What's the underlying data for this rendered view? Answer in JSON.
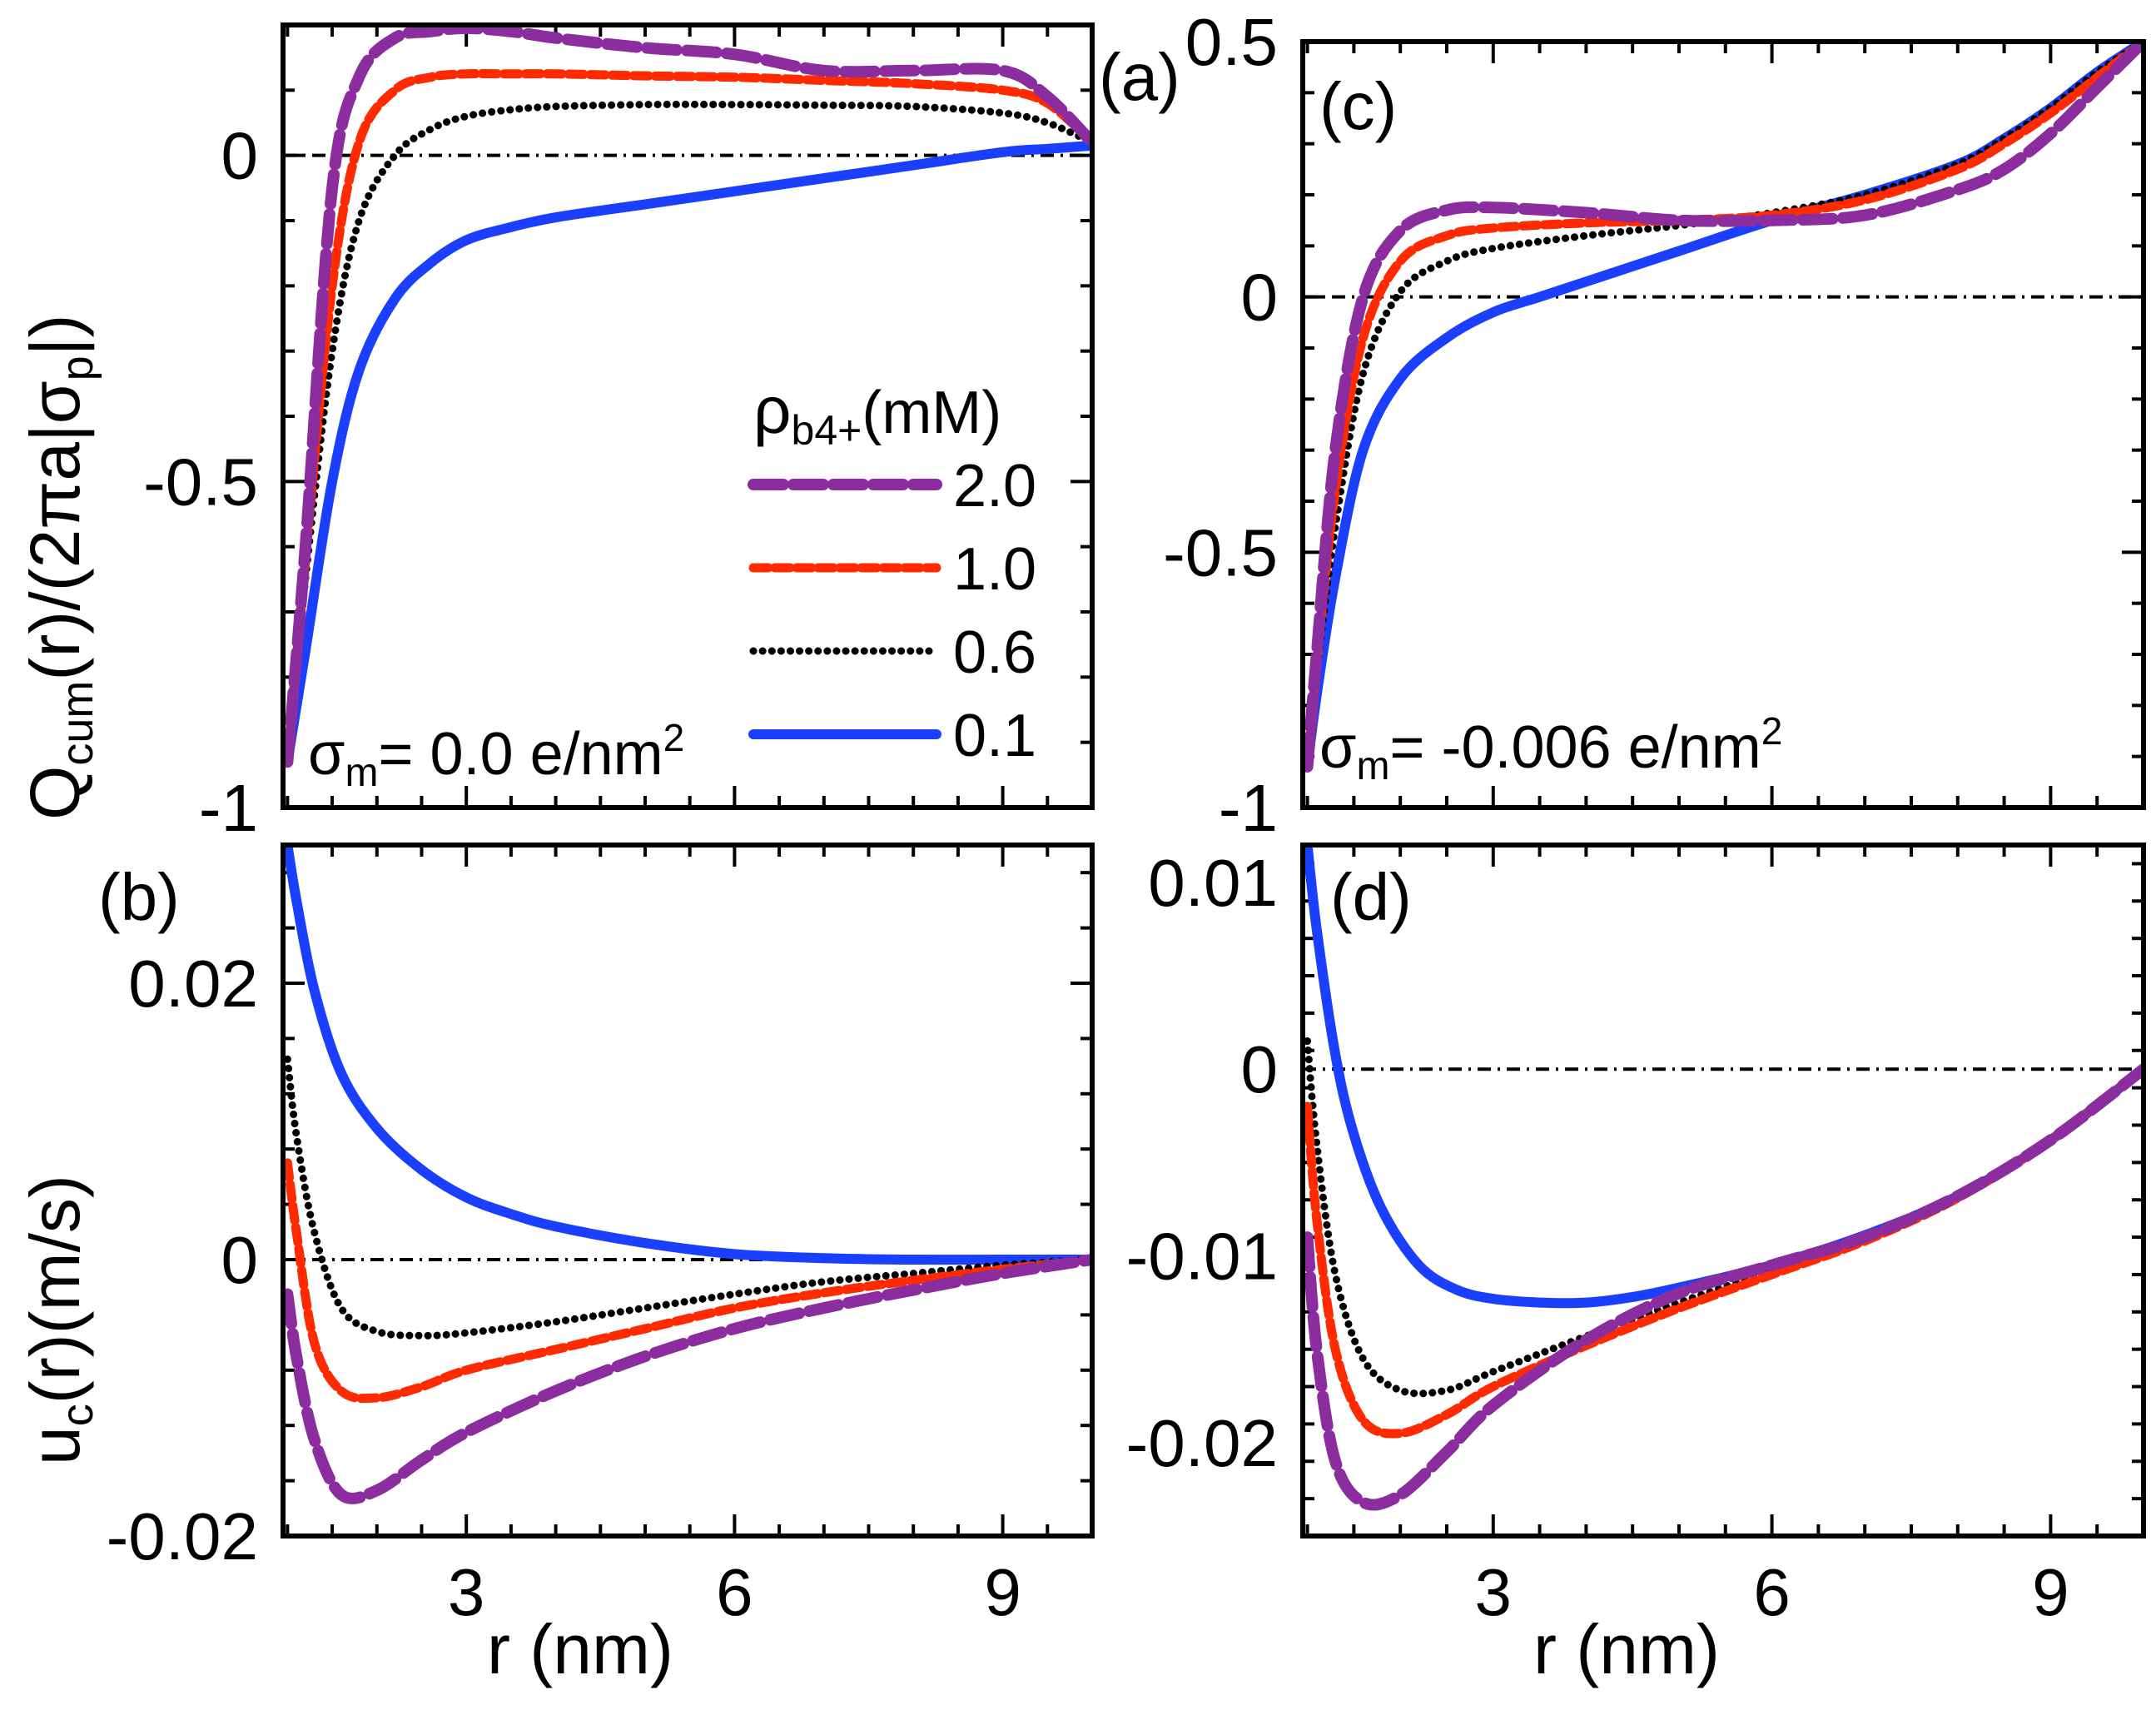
{
  "chart_data": [
    {
      "panel": "(a)",
      "type": "line",
      "ylabel": "Q_cum(r)/(2πa|σ_p|)",
      "xlabel": "",
      "xlim": [
        0.95,
        10.0
      ],
      "ylim": [
        -1.0,
        0.2
      ],
      "xticks": [
        3,
        6,
        9
      ],
      "xtick_labels": [
        "",
        "",
        ""
      ],
      "yticks": [
        -1.0,
        -0.5,
        0.0
      ],
      "ytick_labels": [
        "-1",
        "-0.5",
        "0"
      ],
      "annotation": "σm= 0.0 e/nm²",
      "reference_line_y": 0,
      "series": [
        {
          "name": "2.0",
          "x": [
            1.0,
            1.2,
            1.5,
            1.8,
            2.2,
            2.6,
            3.0,
            3.5,
            4.0,
            5.0,
            6.0,
            7.0,
            8.0,
            9.0,
            9.5,
            10.0
          ],
          "y": [
            -0.93,
            -0.6,
            -0.05,
            0.12,
            0.18,
            0.19,
            0.195,
            0.19,
            0.18,
            0.165,
            0.155,
            0.13,
            0.13,
            0.13,
            0.09,
            0.02
          ]
        },
        {
          "name": "1.0",
          "x": [
            1.0,
            1.2,
            1.5,
            1.8,
            2.2,
            2.6,
            3.0,
            3.5,
            4.0,
            5.0,
            6.0,
            7.0,
            8.0,
            9.0,
            9.5,
            10.0
          ],
          "y": [
            -0.93,
            -0.62,
            -0.2,
            0.02,
            0.1,
            0.12,
            0.125,
            0.125,
            0.125,
            0.122,
            0.12,
            0.115,
            0.11,
            0.1,
            0.08,
            0.02
          ]
        },
        {
          "name": "0.6",
          "x": [
            1.0,
            1.2,
            1.5,
            1.8,
            2.2,
            2.6,
            3.0,
            3.5,
            4.0,
            5.0,
            6.0,
            7.0,
            8.0,
            9.0,
            9.5,
            10.0
          ],
          "y": [
            -0.93,
            -0.65,
            -0.3,
            -0.1,
            0.0,
            0.04,
            0.06,
            0.07,
            0.075,
            0.078,
            0.078,
            0.077,
            0.075,
            0.065,
            0.05,
            0.02
          ]
        },
        {
          "name": "0.1",
          "x": [
            1.0,
            1.2,
            1.5,
            1.8,
            2.2,
            2.6,
            3.0,
            3.5,
            4.0,
            5.0,
            6.0,
            7.0,
            8.0,
            9.0,
            9.5,
            10.0
          ],
          "y": [
            -0.93,
            -0.76,
            -0.5,
            -0.33,
            -0.22,
            -0.165,
            -0.13,
            -0.11,
            -0.095,
            -0.075,
            -0.055,
            -0.035,
            -0.015,
            0.005,
            0.01,
            0.015
          ]
        }
      ]
    },
    {
      "panel": "(b)",
      "type": "line",
      "ylabel": "u_c(r)(m/s)",
      "xlabel": "r (nm)",
      "xlim": [
        0.95,
        10.0
      ],
      "ylim": [
        -0.02,
        0.03
      ],
      "xticks": [
        3,
        6,
        9
      ],
      "xtick_labels": [
        "3",
        "6",
        "9"
      ],
      "yticks": [
        -0.02,
        0.0,
        0.02
      ],
      "ytick_labels": [
        "-0.02",
        "0",
        "0.02"
      ],
      "reference_line_y": 0,
      "series": [
        {
          "name": "2.0",
          "x": [
            1.0,
            1.1,
            1.3,
            1.6,
            2.0,
            2.5,
            3.0,
            4.0,
            5.0,
            6.0,
            7.0,
            8.0,
            9.0,
            10.0
          ],
          "y": [
            -0.0025,
            -0.007,
            -0.013,
            -0.017,
            -0.0167,
            -0.0145,
            -0.0125,
            -0.0095,
            -0.007,
            -0.005,
            -0.0035,
            -0.0022,
            -0.001,
            0.0
          ]
        },
        {
          "name": "1.0",
          "x": [
            1.0,
            1.1,
            1.3,
            1.6,
            2.0,
            2.5,
            3.0,
            4.0,
            5.0,
            6.0,
            7.0,
            8.0,
            9.0,
            10.0
          ],
          "y": [
            0.007,
            0.002,
            -0.006,
            -0.0095,
            -0.01,
            -0.0092,
            -0.008,
            -0.0065,
            -0.005,
            -0.0035,
            -0.0024,
            -0.0015,
            -0.0007,
            0.0
          ]
        },
        {
          "name": "0.6",
          "x": [
            1.0,
            1.1,
            1.3,
            1.6,
            2.0,
            2.5,
            3.0,
            4.0,
            5.0,
            6.0,
            7.0,
            8.0,
            9.0,
            10.0
          ],
          "y": [
            0.0145,
            0.009,
            0.002,
            -0.0035,
            -0.0052,
            -0.0055,
            -0.0053,
            -0.0045,
            -0.0035,
            -0.0025,
            -0.0016,
            -0.001,
            -0.0004,
            0.0
          ]
        },
        {
          "name": "0.1",
          "x": [
            1.0,
            1.1,
            1.3,
            1.6,
            2.0,
            2.5,
            3.0,
            3.5,
            4.0,
            5.0,
            6.0,
            7.0,
            8.0,
            9.0,
            10.0
          ],
          "y": [
            0.03,
            0.026,
            0.0195,
            0.0135,
            0.0095,
            0.0065,
            0.0045,
            0.0033,
            0.0024,
            0.0012,
            0.0004,
            0.0001,
            0.0,
            0.0,
            0.0
          ]
        }
      ]
    },
    {
      "panel": "(c)",
      "type": "line",
      "ylabel": "",
      "xlabel": "",
      "xlim": [
        0.95,
        10.0
      ],
      "ylim": [
        -1.0,
        0.5
      ],
      "xticks": [
        3,
        6,
        9
      ],
      "xtick_labels": [
        "",
        "",
        ""
      ],
      "yticks": [
        -1.0,
        -0.5,
        0.0,
        0.5
      ],
      "ytick_labels": [
        "-1",
        "-0.5",
        "0",
        "0.5"
      ],
      "annotation": "σm= -0.006 e/nm²",
      "reference_line_y": 0,
      "series": [
        {
          "name": "2.0",
          "x": [
            1.0,
            1.1,
            1.3,
            1.6,
            2.0,
            2.5,
            3.0,
            4.0,
            5.0,
            6.0,
            7.0,
            8.0,
            8.5,
            9.0,
            9.5,
            10.0
          ],
          "y": [
            -0.92,
            -0.7,
            -0.3,
            0.0,
            0.13,
            0.17,
            0.175,
            0.165,
            0.15,
            0.15,
            0.16,
            0.21,
            0.25,
            0.32,
            0.41,
            0.5
          ]
        },
        {
          "name": "1.0",
          "x": [
            1.0,
            1.1,
            1.3,
            1.6,
            2.0,
            2.5,
            3.0,
            4.0,
            5.0,
            6.0,
            7.0,
            8.0,
            8.5,
            9.0,
            9.5,
            10.0
          ],
          "y": [
            -0.92,
            -0.72,
            -0.38,
            -0.08,
            0.07,
            0.12,
            0.135,
            0.145,
            0.15,
            0.16,
            0.19,
            0.25,
            0.3,
            0.36,
            0.43,
            0.5
          ]
        },
        {
          "name": "0.6",
          "x": [
            1.0,
            1.1,
            1.3,
            1.6,
            2.0,
            2.5,
            3.0,
            4.0,
            5.0,
            6.0,
            7.0,
            8.0,
            8.5,
            9.0,
            9.5,
            10.0
          ],
          "y": [
            -0.92,
            -0.74,
            -0.45,
            -0.15,
            0.01,
            0.07,
            0.095,
            0.12,
            0.14,
            0.165,
            0.2,
            0.26,
            0.31,
            0.37,
            0.44,
            0.5
          ]
        },
        {
          "name": "0.1",
          "x": [
            1.0,
            1.1,
            1.3,
            1.6,
            2.0,
            2.5,
            3.0,
            3.5,
            4.0,
            5.0,
            6.0,
            7.0,
            8.0,
            8.5,
            9.0,
            9.5,
            10.0
          ],
          "y": [
            -0.92,
            -0.78,
            -0.55,
            -0.3,
            -0.16,
            -0.08,
            -0.03,
            0.0,
            0.03,
            0.09,
            0.15,
            0.2,
            0.26,
            0.31,
            0.37,
            0.44,
            0.5
          ]
        }
      ]
    },
    {
      "panel": "(d)",
      "type": "line",
      "ylabel": "",
      "xlabel": "r (nm)",
      "xlim": [
        0.95,
        10.0
      ],
      "ylim": [
        -0.025,
        0.012
      ],
      "xticks": [
        3,
        6,
        9
      ],
      "xtick_labels": [
        "3",
        "6",
        "9"
      ],
      "yticks": [
        -0.02,
        -0.01,
        0.0,
        0.01
      ],
      "ytick_labels": [
        "-0.02",
        "-0.01",
        "0",
        "0.01"
      ],
      "reference_line_y": 0,
      "series": [
        {
          "name": "2.0",
          "x": [
            1.0,
            1.1,
            1.3,
            1.6,
            2.0,
            2.5,
            3.0,
            4.0,
            5.0,
            6.0,
            7.0,
            8.0,
            9.0,
            10.0
          ],
          "y": [
            -0.009,
            -0.015,
            -0.021,
            -0.0232,
            -0.0228,
            -0.0205,
            -0.018,
            -0.0145,
            -0.012,
            -0.0105,
            -0.009,
            -0.0068,
            -0.0038,
            0.0
          ]
        },
        {
          "name": "1.0",
          "x": [
            1.0,
            1.1,
            1.3,
            1.6,
            2.0,
            2.5,
            3.0,
            4.0,
            5.0,
            6.0,
            7.0,
            8.0,
            9.0,
            10.0
          ],
          "y": [
            -0.002,
            -0.008,
            -0.015,
            -0.0188,
            -0.0195,
            -0.0185,
            -0.017,
            -0.0148,
            -0.0128,
            -0.011,
            -0.0092,
            -0.0069,
            -0.0038,
            0.0
          ]
        },
        {
          "name": "0.6",
          "x": [
            1.0,
            1.1,
            1.3,
            1.6,
            2.0,
            2.5,
            3.0,
            4.0,
            5.0,
            6.0,
            7.0,
            8.0,
            9.0,
            10.0
          ],
          "y": [
            0.0015,
            -0.004,
            -0.011,
            -0.0155,
            -0.0172,
            -0.0172,
            -0.0162,
            -0.0143,
            -0.0125,
            -0.0108,
            -0.0091,
            -0.0069,
            -0.0038,
            0.0
          ]
        },
        {
          "name": "0.1",
          "x": [
            1.0,
            1.1,
            1.3,
            1.5,
            1.8,
            2.2,
            2.6,
            3.0,
            3.5,
            4.0,
            4.5,
            5.0,
            6.0,
            7.0,
            8.0,
            9.0,
            10.0
          ],
          "y": [
            0.012,
            0.0075,
            0.0008,
            -0.0035,
            -0.0075,
            -0.0105,
            -0.0118,
            -0.0123,
            -0.0125,
            -0.0125,
            -0.0122,
            -0.0117,
            -0.0105,
            -0.0089,
            -0.0068,
            -0.0038,
            0.0
          ]
        }
      ]
    }
  ],
  "legend": {
    "title": "ρb4+(mM)",
    "title_main": "ρ",
    "title_sub": "b4+",
    "title_tail": "(mM)",
    "entries": [
      "2.0",
      "1.0",
      "0.6",
      "0.1"
    ]
  },
  "axis_text": {
    "top_ylabel_main": "Q",
    "top_ylabel_sub": "cum",
    "top_ylabel_tail": "(r)/(2πa|σ",
    "top_ylabel_sub2": "p",
    "top_ylabel_end": "|)",
    "bottom_ylabel_main": "u",
    "bottom_ylabel_sub": "c",
    "bottom_ylabel_tail": "(r)(m/s)",
    "xlabel_left": "r (nm)",
    "xlabel_right": "r (nm)",
    "ann_a_main": "σ",
    "ann_a_sub": "m",
    "ann_a_tail": "= 0.0  e/nm",
    "ann_a_sup": "2",
    "ann_c_main": "σ",
    "ann_c_sub": "m",
    "ann_c_tail": "= -0.006  e/nm",
    "ann_c_sup": "2"
  },
  "colors": {
    "2.0": "#8b2d9e",
    "1.0": "#ff2a00",
    "0.6": "#000000",
    "0.1": "#1b3fff"
  }
}
